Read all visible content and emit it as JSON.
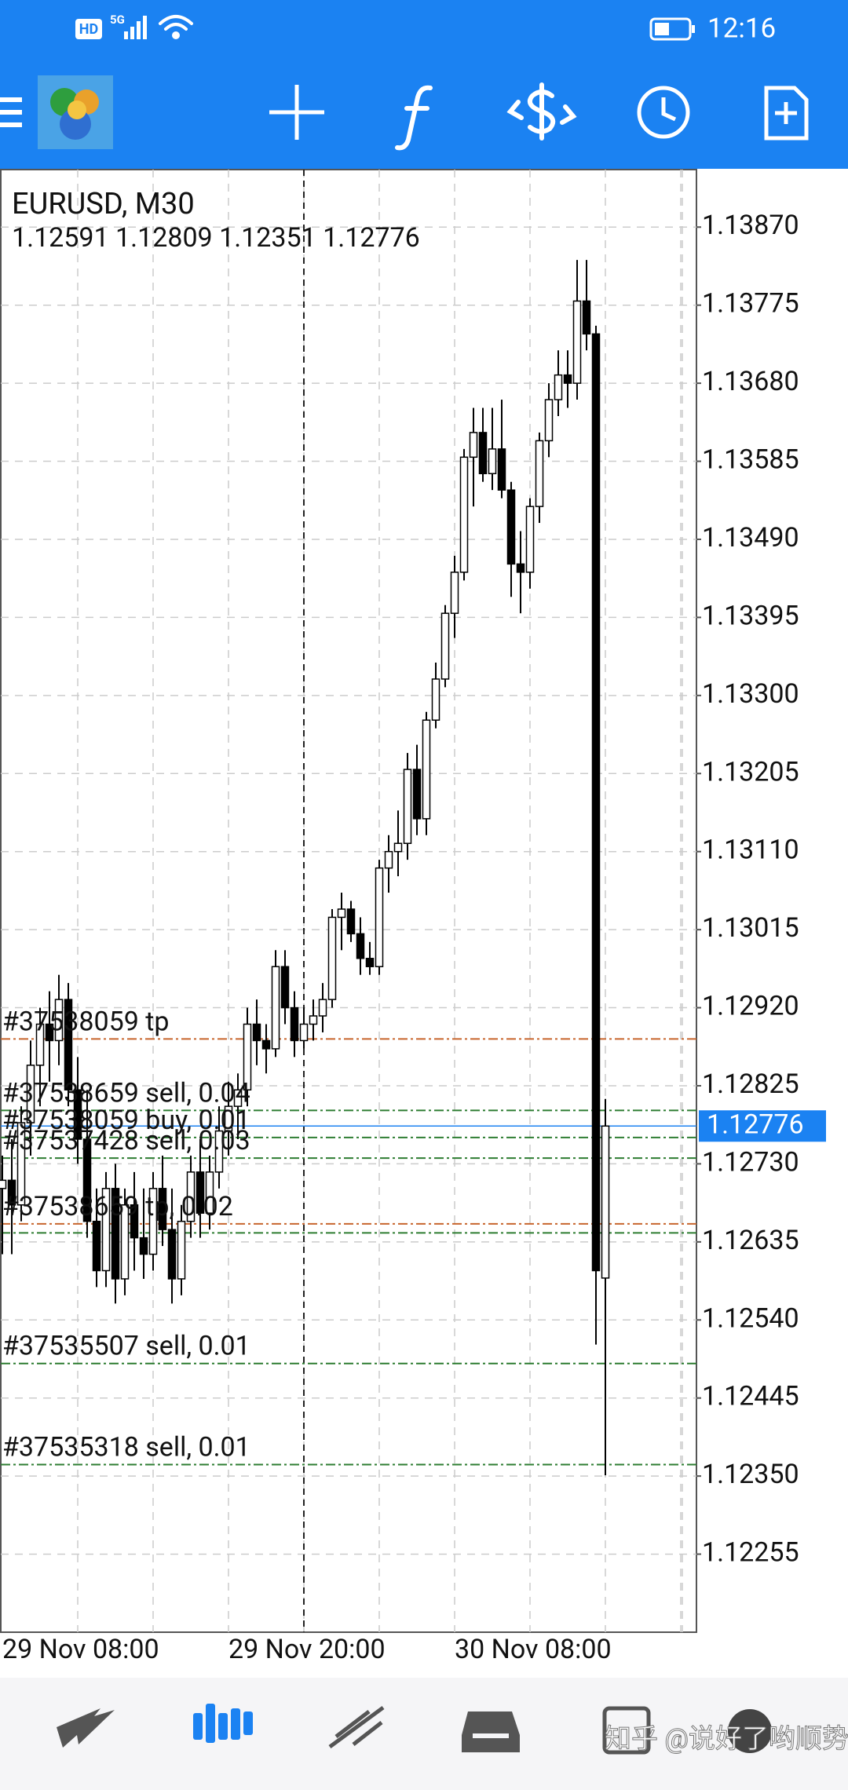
{
  "status_bar": {
    "hd_badge": "HD",
    "network": "5G",
    "time": "12:16"
  },
  "watermark": "知乎 @说好了哟顺势",
  "chart_data": {
    "type": "candlestick",
    "title": "EURUSD, M30",
    "ohlc_label": "1.12591 1.12809 1.12351 1.12776",
    "categories": [
      "29 Nov 08:00",
      null,
      null,
      null,
      null,
      null,
      null,
      null,
      null,
      null,
      null,
      null,
      null,
      null,
      null,
      null,
      null,
      null,
      null,
      null,
      null,
      null,
      null,
      null,
      "29 Nov 20:00",
      null,
      null,
      null,
      null,
      null,
      null,
      null,
      null,
      null,
      null,
      null,
      null,
      null,
      null,
      null,
      null,
      null,
      null,
      null,
      null,
      null,
      null,
      null,
      "30 Nov 08:00",
      null,
      null,
      null,
      null,
      null,
      null,
      null,
      null,
      null,
      null,
      null,
      null,
      null,
      null,
      null,
      null
    ],
    "open": [
      1.127,
      1.1271,
      1.1268,
      1.1278,
      1.1285,
      1.129,
      1.1288,
      1.1293,
      1.1282,
      1.1276,
      1.1266,
      1.126,
      1.127,
      1.1259,
      1.1268,
      1.1264,
      1.1262,
      1.127,
      1.1265,
      1.1259,
      1.1266,
      1.1272,
      1.1267,
      1.1272,
      1.1277,
      1.128,
      1.1282,
      1.129,
      1.1288,
      1.1287,
      1.1297,
      1.1292,
      1.1288,
      1.129,
      1.1291,
      1.1293,
      1.1303,
      1.1304,
      1.1301,
      1.1298,
      1.1297,
      1.1309,
      1.1311,
      1.1312,
      1.1321,
      1.1315,
      1.1327,
      1.1332,
      1.134,
      1.1345,
      1.1359,
      1.1362,
      1.1357,
      1.136,
      1.1355,
      1.1346,
      1.1345,
      1.1353,
      1.1361,
      1.1366,
      1.1369,
      1.1368,
      1.1378,
      1.1374,
      1.12591
    ],
    "high": [
      1.1274,
      1.1276,
      1.128,
      1.1288,
      1.1292,
      1.1294,
      1.1296,
      1.1295,
      1.1286,
      1.1282,
      1.127,
      1.1272,
      1.1273,
      1.127,
      1.1272,
      1.127,
      1.1272,
      1.1274,
      1.127,
      1.1268,
      1.1274,
      1.1276,
      1.1274,
      1.128,
      1.1283,
      1.1284,
      1.1292,
      1.1293,
      1.129,
      1.1299,
      1.1299,
      1.1294,
      1.1292,
      1.1293,
      1.1295,
      1.1304,
      1.1306,
      1.1305,
      1.1303,
      1.13,
      1.131,
      1.1313,
      1.1316,
      1.1323,
      1.1324,
      1.1328,
      1.1334,
      1.1341,
      1.1347,
      1.136,
      1.1365,
      1.1365,
      1.1365,
      1.1366,
      1.1356,
      1.135,
      1.1354,
      1.1362,
      1.1368,
      1.1372,
      1.1372,
      1.1383,
      1.1383,
      1.1375,
      1.12809
    ],
    "low": [
      1.1262,
      1.1262,
      1.1266,
      1.1274,
      1.128,
      1.1283,
      1.1285,
      1.128,
      1.1273,
      1.1264,
      1.1258,
      1.1258,
      1.1256,
      1.1257,
      1.126,
      1.1259,
      1.126,
      1.1263,
      1.1256,
      1.1257,
      1.1264,
      1.1264,
      1.1265,
      1.127,
      1.1274,
      1.1276,
      1.128,
      1.1285,
      1.1284,
      1.1286,
      1.129,
      1.1286,
      1.1287,
      1.1288,
      1.1289,
      1.1292,
      1.1299,
      1.13,
      1.1296,
      1.1296,
      1.1296,
      1.1306,
      1.1308,
      1.131,
      1.1313,
      1.1313,
      1.1326,
      1.1331,
      1.1337,
      1.1344,
      1.1353,
      1.1356,
      1.1355,
      1.1354,
      1.1342,
      1.134,
      1.1343,
      1.1351,
      1.1359,
      1.1364,
      1.1365,
      1.1366,
      1.1372,
      1.1251,
      1.12351
    ],
    "close": [
      1.1271,
      1.1268,
      1.1278,
      1.1285,
      1.129,
      1.1288,
      1.1293,
      1.1282,
      1.1276,
      1.1266,
      1.126,
      1.127,
      1.1259,
      1.1268,
      1.1264,
      1.1262,
      1.127,
      1.1265,
      1.1259,
      1.1266,
      1.1272,
      1.1267,
      1.1272,
      1.1277,
      1.128,
      1.1282,
      1.129,
      1.1288,
      1.1287,
      1.1297,
      1.1292,
      1.1288,
      1.129,
      1.1291,
      1.1293,
      1.1303,
      1.1304,
      1.1301,
      1.1298,
      1.1297,
      1.1309,
      1.1311,
      1.1312,
      1.1321,
      1.1315,
      1.1327,
      1.1332,
      1.134,
      1.1345,
      1.1359,
      1.1362,
      1.1357,
      1.136,
      1.1355,
      1.1346,
      1.1345,
      1.1353,
      1.1361,
      1.1366,
      1.1369,
      1.1368,
      1.1378,
      1.1374,
      1.126,
      1.12776
    ],
    "up_color": "#ffffff",
    "down_color": "#000000",
    "current_price": 1.12776,
    "current_price_color": "#1b82f2",
    "levels": [
      {
        "value": 1.12882,
        "color": "#c8662e",
        "label": "#37538059 tp"
      },
      {
        "value": 1.12795,
        "color": "#2e7d32",
        "label": "#37538659 sell, 0.04"
      },
      {
        "value": 1.12762,
        "color": "#2e7d32",
        "label": "#37538059 buy, 0.01"
      },
      {
        "value": 1.12737,
        "color": "#2e7d32",
        "label": "#37537428 sell, 0.03"
      },
      {
        "value": 1.12657,
        "color": "#c8662e",
        "label": "#37538659 tp, 0.02"
      },
      {
        "value": 1.12646,
        "color": "#2e7d32"
      },
      {
        "value": 1.12487,
        "color": "#2e7d32",
        "label": "#37535507 sell, 0.01"
      },
      {
        "value": 1.12364,
        "color": "#2e7d32",
        "label": "#37535318 sell, 0.01"
      }
    ],
    "ylim": [
      1.1216,
      1.1394
    ],
    "yticks": [
      {
        "value": 1.1387,
        "label": "1.13870"
      },
      1.13775,
      {
        "value": 1.1368,
        "label": "1.13680"
      },
      1.13585,
      {
        "value": 1.1349,
        "label": "1.13490"
      },
      1.13395,
      {
        "value": 1.133,
        "label": "1.13300"
      },
      1.13205,
      {
        "value": 1.1311,
        "label": "1.13110"
      },
      1.13015,
      {
        "value": 1.1292,
        "label": "1.12920"
      },
      1.12825,
      {
        "value": 1.1273,
        "label": "1.12730"
      },
      1.12635,
      {
        "value": 1.1254,
        "label": "1.12540"
      },
      1.12445,
      {
        "value": 1.1235,
        "label": "1.12350"
      },
      1.12255
    ],
    "grid": true
  }
}
